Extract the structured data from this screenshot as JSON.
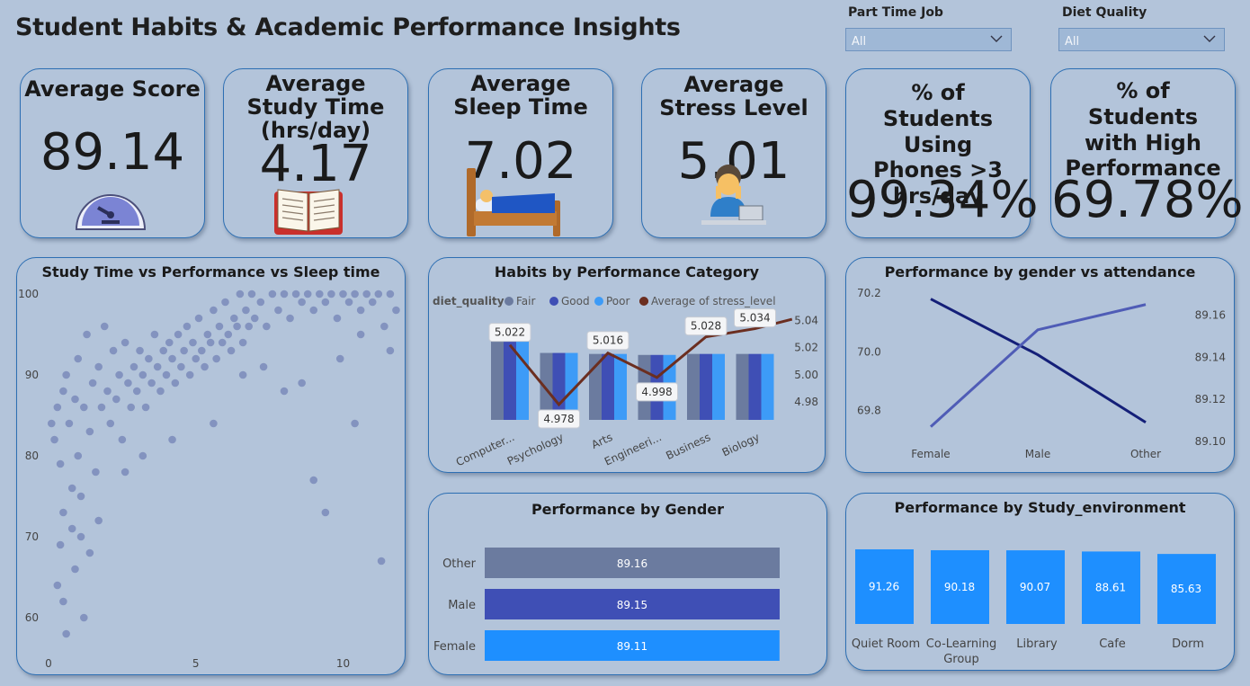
{
  "title": "Student Habits & Academic Performance Insights",
  "filters": [
    {
      "label": "Part Time Job",
      "value": "All"
    },
    {
      "label": "Diet Quality",
      "value": "All"
    }
  ],
  "kpis": [
    {
      "title": "Average Score",
      "value": "89.14",
      "icon": "speedometer-icon"
    },
    {
      "title": "Average Study Time (hrs/day)",
      "value": "4.17",
      "icon": "open-book-icon"
    },
    {
      "title": "Average Sleep Time",
      "value": "7.02",
      "icon": "bed-icon"
    },
    {
      "title": "Average Stress Level",
      "value": "5.01",
      "icon": "stressed-person-icon"
    },
    {
      "title": "% of Students Using Phones >3 hrs/day",
      "value": "99.34%"
    },
    {
      "title": "% of Students with High Performance",
      "value": "69.78%"
    }
  ],
  "chart_data": [
    {
      "type": "scatter",
      "title": "Study Time vs Performance vs Sleep time",
      "xlim": [
        0,
        12
      ],
      "ylim": [
        55,
        100
      ],
      "x_ticks": [
        "0",
        "5",
        "10"
      ],
      "y_ticks": [
        "60",
        "70",
        "80",
        "90",
        "100"
      ],
      "note_points_estimated": true,
      "points": [
        [
          0.1,
          84
        ],
        [
          0.2,
          82
        ],
        [
          0.3,
          86
        ],
        [
          0.4,
          79
        ],
        [
          0.5,
          88
        ],
        [
          0.5,
          73
        ],
        [
          0.6,
          90
        ],
        [
          0.7,
          84
        ],
        [
          0.8,
          76
        ],
        [
          0.9,
          87
        ],
        [
          1.0,
          92
        ],
        [
          1.0,
          80
        ],
        [
          1.1,
          70
        ],
        [
          1.2,
          86
        ],
        [
          1.3,
          95
        ],
        [
          1.4,
          83
        ],
        [
          1.5,
          89
        ],
        [
          1.6,
          78
        ],
        [
          1.7,
          91
        ],
        [
          1.8,
          86
        ],
        [
          1.9,
          96
        ],
        [
          2.0,
          88
        ],
        [
          2.1,
          84
        ],
        [
          2.2,
          93
        ],
        [
          2.3,
          87
        ],
        [
          2.4,
          90
        ],
        [
          2.5,
          82
        ],
        [
          2.6,
          94
        ],
        [
          2.7,
          89
        ],
        [
          2.8,
          86
        ],
        [
          2.9,
          91
        ],
        [
          3.0,
          88
        ],
        [
          3.1,
          93
        ],
        [
          3.2,
          90
        ],
        [
          3.3,
          86
        ],
        [
          3.4,
          92
        ],
        [
          3.5,
          89
        ],
        [
          3.6,
          95
        ],
        [
          3.7,
          91
        ],
        [
          3.8,
          88
        ],
        [
          3.9,
          93
        ],
        [
          4.0,
          90
        ],
        [
          4.1,
          94
        ],
        [
          4.2,
          92
        ],
        [
          4.3,
          89
        ],
        [
          4.4,
          95
        ],
        [
          4.5,
          91
        ],
        [
          4.6,
          93
        ],
        [
          4.7,
          96
        ],
        [
          4.8,
          90
        ],
        [
          4.9,
          94
        ],
        [
          5.0,
          92
        ],
        [
          5.1,
          97
        ],
        [
          5.2,
          93
        ],
        [
          5.3,
          91
        ],
        [
          5.4,
          95
        ],
        [
          5.5,
          94
        ],
        [
          5.6,
          98
        ],
        [
          5.7,
          92
        ],
        [
          5.8,
          96
        ],
        [
          5.9,
          94
        ],
        [
          6.0,
          99
        ],
        [
          6.1,
          95
        ],
        [
          6.2,
          93
        ],
        [
          6.3,
          97
        ],
        [
          6.4,
          96
        ],
        [
          6.5,
          100
        ],
        [
          6.6,
          94
        ],
        [
          6.7,
          98
        ],
        [
          6.8,
          96
        ],
        [
          6.9,
          100
        ],
        [
          7.0,
          97
        ],
        [
          7.2,
          99
        ],
        [
          7.4,
          96
        ],
        [
          7.6,
          100
        ],
        [
          7.8,
          98
        ],
        [
          8.0,
          100
        ],
        [
          8.2,
          97
        ],
        [
          8.4,
          100
        ],
        [
          8.6,
          99
        ],
        [
          8.8,
          100
        ],
        [
          9.0,
          98
        ],
        [
          9.2,
          100
        ],
        [
          9.4,
          99
        ],
        [
          9.6,
          100
        ],
        [
          9.8,
          97
        ],
        [
          10.0,
          100
        ],
        [
          10.2,
          99
        ],
        [
          10.4,
          100
        ],
        [
          10.6,
          98
        ],
        [
          10.8,
          100
        ],
        [
          11.0,
          99
        ],
        [
          11.2,
          100
        ],
        [
          11.4,
          96
        ],
        [
          11.6,
          100
        ],
        [
          11.8,
          98
        ],
        [
          0.3,
          64
        ],
        [
          0.5,
          62
        ],
        [
          0.6,
          58
        ],
        [
          0.9,
          66
        ],
        [
          1.2,
          60
        ],
        [
          1.4,
          68
        ],
        [
          1.7,
          72
        ],
        [
          0.8,
          71
        ],
        [
          0.4,
          69
        ],
        [
          1.1,
          75
        ],
        [
          9.0,
          77
        ],
        [
          9.4,
          73
        ],
        [
          10.4,
          84
        ],
        [
          11.3,
          67
        ],
        [
          3.2,
          80
        ],
        [
          2.6,
          78
        ],
        [
          5.6,
          84
        ],
        [
          4.2,
          82
        ],
        [
          8.0,
          88
        ],
        [
          8.6,
          89
        ],
        [
          7.3,
          91
        ],
        [
          6.6,
          90
        ],
        [
          9.9,
          92
        ],
        [
          10.6,
          95
        ],
        [
          11.6,
          93
        ]
      ]
    },
    {
      "type": "bar+line",
      "title": "Habits by Performance Category",
      "legend_title": "diet_quality",
      "categories": [
        "Computer...",
        "Psychology",
        "Arts",
        "Engineeri...",
        "Business",
        "Biology"
      ],
      "series": [
        {
          "name": "Fair",
          "color": "#6b7b9f",
          "values": [
            84,
            67,
            66,
            65,
            66,
            66
          ]
        },
        {
          "name": "Good",
          "color": "#3f4fb5",
          "values": [
            84,
            67,
            66,
            65,
            66,
            66
          ]
        },
        {
          "name": "Poor",
          "color": "#3d9bf7",
          "values": [
            84,
            67,
            66,
            65,
            66,
            66
          ]
        }
      ],
      "line": {
        "name": "Average of stress_level",
        "color": "#6b2e20",
        "values": [
          5.022,
          4.978,
          5.016,
          4.998,
          5.028,
          5.034
        ]
      },
      "line_labels": [
        "5.022",
        "4.978",
        "5.016",
        "4.998",
        "5.028",
        "5.034"
      ],
      "right_axis_ticks": [
        "5.04",
        "5.02",
        "5.00",
        "4.98"
      ],
      "right_ylim": [
        4.97,
        5.045
      ]
    },
    {
      "type": "line",
      "title": "Performance by gender vs attendance",
      "categories": [
        "Female",
        "Male",
        "Other"
      ],
      "series": [
        {
          "color": "#141f78",
          "axis": "left",
          "values": [
            70.18,
            69.99,
            69.76
          ]
        },
        {
          "color": "#4f5cb6",
          "axis": "right",
          "values": [
            89.107,
            89.153,
            89.165
          ]
        }
      ],
      "left_ticks": [
        "70.2",
        "70.0",
        "69.8"
      ],
      "right_ticks": [
        "89.16",
        "89.14",
        "89.12",
        "89.10"
      ],
      "left_ylim": [
        69.75,
        70.2
      ],
      "right_ylim": [
        89.1,
        89.17
      ]
    },
    {
      "type": "bar",
      "orientation": "horizontal",
      "title": "Performance by Gender",
      "categories": [
        "Other",
        "Male",
        "Female"
      ],
      "values": [
        89.16,
        89.15,
        89.11
      ],
      "colors": [
        "#6b7b9f",
        "#3f4fb5",
        "#1e8fff"
      ]
    },
    {
      "type": "bar",
      "title": "Performance by Study_environment",
      "categories": [
        "Quiet Room",
        "Co-Learning Group",
        "Library",
        "Cafe",
        "Dorm"
      ],
      "values": [
        91.26,
        90.18,
        90.07,
        88.61,
        85.63
      ],
      "color": "#1e8fff"
    }
  ]
}
